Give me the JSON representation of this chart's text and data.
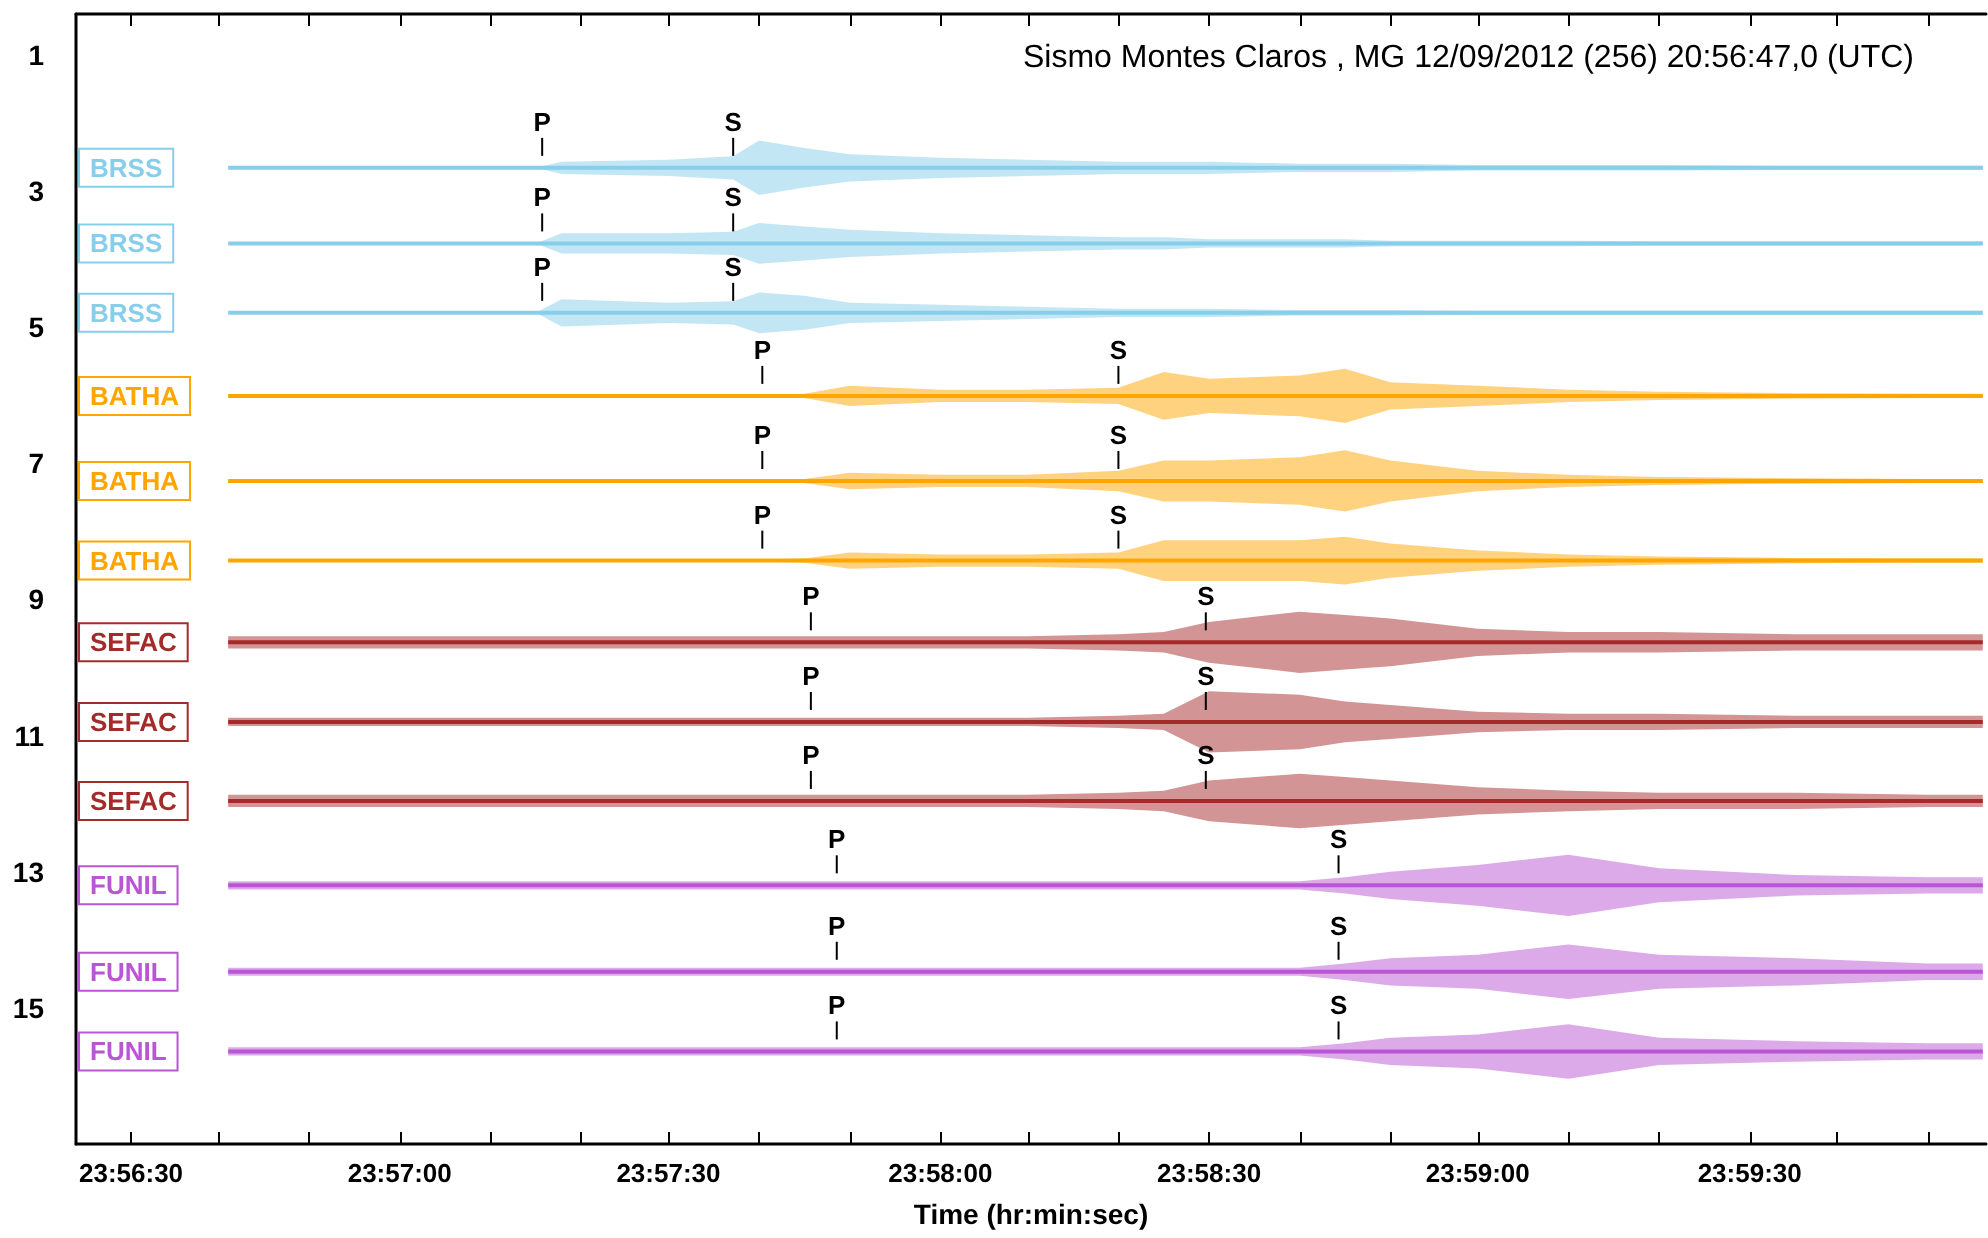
{
  "chart_data": {
    "type": "line",
    "title": "Sismo Montes Claros , MG 12/09/2012 (256) 20:56:47,0 (UTC)",
    "xlabel": "Time (hr:min:sec)",
    "x": [
      23.9447,
      23.95,
      23.9542,
      23.955,
      23.9583,
      23.9603,
      23.9611,
      23.9625,
      23.9639,
      23.9667,
      23.9694,
      23.9722,
      23.9736,
      23.975,
      23.9778,
      23.9792,
      23.9806,
      23.9833,
      23.9861,
      23.9889,
      23.9931,
      23.9972,
      23.9989
    ],
    "xlim": [
      23.94,
      23.999
    ],
    "xticks": [
      {
        "value": 23.9417,
        "label": "23:56:30"
      },
      {
        "value": 23.9444,
        "label": null
      },
      {
        "value": 23.9472,
        "label": null
      },
      {
        "value": 23.95,
        "label": "23:57:00"
      },
      {
        "value": 23.9528,
        "label": null
      },
      {
        "value": 23.9556,
        "label": null
      },
      {
        "value": 23.9583,
        "label": "23:57:30"
      },
      {
        "value": 23.9611,
        "label": null
      },
      {
        "value": 23.9639,
        "label": null
      },
      {
        "value": 23.9667,
        "label": "23:58:00"
      },
      {
        "value": 23.9694,
        "label": null
      },
      {
        "value": 23.9722,
        "label": null
      },
      {
        "value": 23.975,
        "label": "23:58:30"
      },
      {
        "value": 23.9778,
        "label": null
      },
      {
        "value": 23.9806,
        "label": null
      },
      {
        "value": 23.9833,
        "label": "23:59:00"
      },
      {
        "value": 23.9861,
        "label": null
      },
      {
        "value": 23.9889,
        "label": null
      },
      {
        "value": 23.9917,
        "label": "23:59:30"
      },
      {
        "value": 23.9944,
        "label": null
      },
      {
        "value": 23.9972,
        "label": null
      }
    ],
    "ylim": [
      17,
      0.4
    ],
    "yticks": [
      1,
      3,
      5,
      7,
      9,
      11,
      13,
      15
    ],
    "series": [
      {
        "name": "BRSS",
        "color": "#87ceeb",
        "values": [
          2.66,
          2.66,
          2.66,
          2.66,
          2.66,
          2.66,
          2.66,
          2.66,
          2.66,
          2.66,
          2.66,
          2.66,
          2.66,
          2.66,
          2.66,
          2.66,
          2.66,
          2.66,
          2.66,
          2.66,
          2.66,
          2.66,
          2.66
        ],
        "lower": [
          2.66,
          2.66,
          2.66,
          2.57,
          2.54,
          2.49,
          2.26,
          2.37,
          2.46,
          2.51,
          2.54,
          2.57,
          2.57,
          2.57,
          2.6,
          2.6,
          2.6,
          2.62,
          2.62,
          2.62,
          2.63,
          2.63,
          2.63
        ],
        "upper": [
          2.66,
          2.66,
          2.66,
          2.75,
          2.78,
          2.83,
          3.06,
          2.95,
          2.86,
          2.81,
          2.78,
          2.75,
          2.75,
          2.75,
          2.72,
          2.72,
          2.72,
          2.7,
          2.7,
          2.7,
          2.69,
          2.69,
          2.69
        ]
      },
      {
        "name": "BRSS",
        "color": "#87ceeb",
        "values": [
          3.77,
          3.77,
          3.77,
          3.77,
          3.77,
          3.77,
          3.77,
          3.77,
          3.77,
          3.77,
          3.77,
          3.77,
          3.77,
          3.77,
          3.77,
          3.77,
          3.77,
          3.77,
          3.77,
          3.77,
          3.77,
          3.77,
          3.77
        ],
        "lower": [
          3.77,
          3.77,
          3.77,
          3.62,
          3.62,
          3.6,
          3.47,
          3.52,
          3.57,
          3.62,
          3.65,
          3.68,
          3.68,
          3.71,
          3.71,
          3.71,
          3.73,
          3.73,
          3.73,
          3.74,
          3.74,
          3.74,
          3.74
        ],
        "upper": [
          3.77,
          3.77,
          3.77,
          3.92,
          3.92,
          3.94,
          4.07,
          4.02,
          3.97,
          3.92,
          3.89,
          3.86,
          3.86,
          3.83,
          3.83,
          3.83,
          3.81,
          3.81,
          3.81,
          3.8,
          3.8,
          3.8,
          3.8
        ]
      },
      {
        "name": "BRSS",
        "color": "#87ceeb",
        "values": [
          4.79,
          4.79,
          4.79,
          4.79,
          4.79,
          4.79,
          4.79,
          4.79,
          4.79,
          4.79,
          4.79,
          4.79,
          4.79,
          4.79,
          4.79,
          4.79,
          4.79,
          4.79,
          4.79,
          4.79,
          4.79,
          4.79,
          4.79
        ],
        "lower": [
          4.79,
          4.79,
          4.79,
          4.59,
          4.64,
          4.62,
          4.49,
          4.54,
          4.64,
          4.67,
          4.7,
          4.73,
          4.73,
          4.73,
          4.75,
          4.75,
          4.75,
          4.76,
          4.76,
          4.76,
          4.76,
          4.76,
          4.76
        ],
        "upper": [
          4.79,
          4.79,
          4.79,
          4.99,
          4.94,
          4.96,
          5.09,
          5.04,
          4.94,
          4.91,
          4.88,
          4.85,
          4.85,
          4.85,
          4.83,
          4.83,
          4.83,
          4.82,
          4.82,
          4.82,
          4.82,
          4.82,
          4.82
        ]
      },
      {
        "name": "BATHA",
        "color": "#ffa500",
        "values": [
          6.01,
          6.01,
          6.01,
          6.01,
          6.01,
          6.01,
          6.01,
          6.01,
          6.01,
          6.01,
          6.01,
          6.01,
          6.01,
          6.01,
          6.01,
          6.01,
          6.01,
          6.01,
          6.01,
          6.01,
          6.01,
          6.01,
          6.01
        ],
        "lower": [
          6,
          6,
          6,
          6,
          6,
          6,
          6,
          5.98,
          5.86,
          5.92,
          5.92,
          5.89,
          5.66,
          5.76,
          5.71,
          5.61,
          5.81,
          5.86,
          5.92,
          5.95,
          5.97,
          5.98,
          5.98
        ],
        "upper": [
          6.02,
          6.02,
          6.02,
          6.02,
          6.02,
          6.02,
          6.02,
          6.04,
          6.16,
          6.1,
          6.1,
          6.13,
          6.36,
          6.26,
          6.31,
          6.41,
          6.21,
          6.16,
          6.1,
          6.07,
          6.05,
          6.04,
          6.04
        ]
      },
      {
        "name": "BATHA",
        "color": "#ffa500",
        "values": [
          7.26,
          7.26,
          7.26,
          7.26,
          7.26,
          7.26,
          7.26,
          7.26,
          7.26,
          7.26,
          7.26,
          7.26,
          7.26,
          7.26,
          7.26,
          7.26,
          7.26,
          7.26,
          7.26,
          7.26,
          7.26,
          7.26,
          7.26
        ],
        "lower": [
          7.25,
          7.25,
          7.25,
          7.25,
          7.25,
          7.25,
          7.25,
          7.23,
          7.14,
          7.17,
          7.17,
          7.11,
          6.96,
          6.96,
          6.91,
          6.81,
          6.96,
          7.11,
          7.17,
          7.2,
          7.22,
          7.23,
          7.23
        ],
        "upper": [
          7.27,
          7.27,
          7.27,
          7.27,
          7.27,
          7.27,
          7.27,
          7.29,
          7.38,
          7.35,
          7.35,
          7.41,
          7.56,
          7.56,
          7.61,
          7.71,
          7.56,
          7.41,
          7.35,
          7.32,
          7.3,
          7.29,
          7.29
        ]
      },
      {
        "name": "BATHA",
        "color": "#ffa500",
        "values": [
          8.43,
          8.43,
          8.43,
          8.43,
          8.43,
          8.43,
          8.43,
          8.43,
          8.43,
          8.43,
          8.43,
          8.43,
          8.43,
          8.43,
          8.43,
          8.43,
          8.43,
          8.43,
          8.43,
          8.43,
          8.43,
          8.43,
          8.43
        ],
        "lower": [
          8.42,
          8.42,
          8.42,
          8.42,
          8.42,
          8.42,
          8.42,
          8.4,
          8.31,
          8.34,
          8.34,
          8.31,
          8.13,
          8.13,
          8.13,
          8.08,
          8.18,
          8.28,
          8.34,
          8.37,
          8.39,
          8.4,
          8.4
        ],
        "upper": [
          8.44,
          8.44,
          8.44,
          8.44,
          8.44,
          8.44,
          8.44,
          8.46,
          8.55,
          8.52,
          8.52,
          8.55,
          8.73,
          8.73,
          8.73,
          8.78,
          8.68,
          8.58,
          8.52,
          8.49,
          8.47,
          8.46,
          8.46
        ]
      },
      {
        "name": "SEFAC",
        "color": "#a52a2a",
        "values": [
          9.63,
          9.63,
          9.63,
          9.63,
          9.63,
          9.63,
          9.63,
          9.63,
          9.63,
          9.63,
          9.63,
          9.63,
          9.63,
          9.63,
          9.63,
          9.63,
          9.63,
          9.63,
          9.63,
          9.63,
          9.63,
          9.63,
          9.63
        ],
        "lower": [
          9.54,
          9.54,
          9.54,
          9.54,
          9.54,
          9.54,
          9.54,
          9.54,
          9.54,
          9.54,
          9.54,
          9.51,
          9.48,
          9.33,
          9.18,
          9.23,
          9.28,
          9.43,
          9.48,
          9.48,
          9.51,
          9.51,
          9.51
        ],
        "upper": [
          9.72,
          9.72,
          9.72,
          9.72,
          9.72,
          9.72,
          9.72,
          9.72,
          9.72,
          9.72,
          9.72,
          9.75,
          9.78,
          9.93,
          10.08,
          10.03,
          9.98,
          9.83,
          9.78,
          9.78,
          9.75,
          9.75,
          9.75
        ]
      },
      {
        "name": "SEFAC",
        "color": "#a52a2a",
        "values": [
          10.8,
          10.8,
          10.8,
          10.8,
          10.8,
          10.8,
          10.8,
          10.8,
          10.8,
          10.8,
          10.8,
          10.8,
          10.8,
          10.8,
          10.8,
          10.8,
          10.8,
          10.8,
          10.8,
          10.8,
          10.8,
          10.8,
          10.8
        ],
        "lower": [
          10.74,
          10.74,
          10.74,
          10.74,
          10.74,
          10.74,
          10.74,
          10.74,
          10.74,
          10.74,
          10.74,
          10.71,
          10.68,
          10.35,
          10.4,
          10.5,
          10.55,
          10.65,
          10.68,
          10.68,
          10.71,
          10.71,
          10.71
        ],
        "upper": [
          10.86,
          10.86,
          10.86,
          10.86,
          10.86,
          10.86,
          10.86,
          10.86,
          10.86,
          10.86,
          10.86,
          10.89,
          10.92,
          11.25,
          11.2,
          11.1,
          11.05,
          10.95,
          10.92,
          10.92,
          10.89,
          10.89,
          10.89
        ]
      },
      {
        "name": "SEFAC",
        "color": "#a52a2a",
        "values": [
          11.96,
          11.96,
          11.96,
          11.96,
          11.96,
          11.96,
          11.96,
          11.96,
          11.96,
          11.96,
          11.96,
          11.96,
          11.96,
          11.96,
          11.96,
          11.96,
          11.96,
          11.96,
          11.96,
          11.96,
          11.96,
          11.96,
          11.96
        ],
        "lower": [
          11.87,
          11.87,
          11.87,
          11.87,
          11.87,
          11.87,
          11.87,
          11.87,
          11.87,
          11.87,
          11.87,
          11.84,
          11.81,
          11.66,
          11.56,
          11.61,
          11.66,
          11.76,
          11.81,
          11.84,
          11.84,
          11.87,
          11.87
        ],
        "upper": [
          12.05,
          12.05,
          12.05,
          12.05,
          12.05,
          12.05,
          12.05,
          12.05,
          12.05,
          12.05,
          12.05,
          12.08,
          12.11,
          12.26,
          12.36,
          12.31,
          12.26,
          12.16,
          12.11,
          12.08,
          12.08,
          12.05,
          12.05
        ]
      },
      {
        "name": "FUNIL",
        "color": "#ba55d3",
        "values": [
          13.2,
          13.2,
          13.2,
          13.2,
          13.2,
          13.2,
          13.2,
          13.2,
          13.2,
          13.2,
          13.2,
          13.2,
          13.2,
          13.2,
          13.2,
          13.2,
          13.2,
          13.2,
          13.2,
          13.2,
          13.2,
          13.2,
          13.2
        ],
        "lower": [
          13.14,
          13.14,
          13.14,
          13.14,
          13.14,
          13.14,
          13.14,
          13.14,
          13.14,
          13.14,
          13.14,
          13.14,
          13.14,
          13.14,
          13.14,
          13.08,
          13,
          12.9,
          12.75,
          12.95,
          13.05,
          13.08,
          13.08
        ],
        "upper": [
          13.26,
          13.26,
          13.26,
          13.26,
          13.26,
          13.26,
          13.26,
          13.26,
          13.26,
          13.26,
          13.26,
          13.26,
          13.26,
          13.26,
          13.26,
          13.32,
          13.4,
          13.5,
          13.65,
          13.45,
          13.35,
          13.32,
          13.32
        ]
      },
      {
        "name": "FUNIL",
        "color": "#ba55d3",
        "values": [
          14.47,
          14.47,
          14.47,
          14.47,
          14.47,
          14.47,
          14.47,
          14.47,
          14.47,
          14.47,
          14.47,
          14.47,
          14.47,
          14.47,
          14.47,
          14.47,
          14.47,
          14.47,
          14.47,
          14.47,
          14.47,
          14.47,
          14.47
        ],
        "lower": [
          14.41,
          14.41,
          14.41,
          14.41,
          14.41,
          14.41,
          14.41,
          14.41,
          14.41,
          14.41,
          14.41,
          14.41,
          14.41,
          14.41,
          14.41,
          14.35,
          14.27,
          14.22,
          14.07,
          14.22,
          14.27,
          14.35,
          14.35
        ],
        "upper": [
          14.53,
          14.53,
          14.53,
          14.53,
          14.53,
          14.53,
          14.53,
          14.53,
          14.53,
          14.53,
          14.53,
          14.53,
          14.53,
          14.53,
          14.53,
          14.59,
          14.67,
          14.72,
          14.87,
          14.72,
          14.67,
          14.59,
          14.59
        ]
      },
      {
        "name": "FUNIL",
        "color": "#ba55d3",
        "values": [
          15.64,
          15.64,
          15.64,
          15.64,
          15.64,
          15.64,
          15.64,
          15.64,
          15.64,
          15.64,
          15.64,
          15.64,
          15.64,
          15.64,
          15.64,
          15.64,
          15.64,
          15.64,
          15.64,
          15.64,
          15.64,
          15.64,
          15.64
        ],
        "lower": [
          15.58,
          15.58,
          15.58,
          15.58,
          15.58,
          15.58,
          15.58,
          15.58,
          15.58,
          15.58,
          15.58,
          15.58,
          15.58,
          15.58,
          15.58,
          15.52,
          15.44,
          15.39,
          15.24,
          15.44,
          15.49,
          15.52,
          15.52
        ],
        "upper": [
          15.7,
          15.7,
          15.7,
          15.7,
          15.7,
          15.7,
          15.7,
          15.7,
          15.7,
          15.7,
          15.7,
          15.7,
          15.7,
          15.7,
          15.7,
          15.76,
          15.84,
          15.89,
          16.04,
          15.84,
          15.79,
          15.76,
          15.76
        ]
      }
    ],
    "annotations": [
      {
        "text": "P",
        "x": 23.9544,
        "y": 2.66
      },
      {
        "text": "S",
        "x": 23.9603,
        "y": 2.66
      },
      {
        "text": "P",
        "x": 23.9544,
        "y": 3.77
      },
      {
        "text": "S",
        "x": 23.9603,
        "y": 3.77
      },
      {
        "text": "P",
        "x": 23.9544,
        "y": 4.79
      },
      {
        "text": "S",
        "x": 23.9603,
        "y": 4.79
      },
      {
        "text": "P",
        "x": 23.9612,
        "y": 6.01
      },
      {
        "text": "S",
        "x": 23.9722,
        "y": 6.01
      },
      {
        "text": "P",
        "x": 23.9612,
        "y": 7.26
      },
      {
        "text": "S",
        "x": 23.9722,
        "y": 7.26
      },
      {
        "text": "P",
        "x": 23.9612,
        "y": 8.43
      },
      {
        "text": "S",
        "x": 23.9722,
        "y": 8.43
      },
      {
        "text": "P",
        "x": 23.9627,
        "y": 9.63
      },
      {
        "text": "S",
        "x": 23.9749,
        "y": 9.63
      },
      {
        "text": "P",
        "x": 23.9627,
        "y": 10.8
      },
      {
        "text": "S",
        "x": 23.9749,
        "y": 10.8
      },
      {
        "text": "P",
        "x": 23.9627,
        "y": 11.96
      },
      {
        "text": "S",
        "x": 23.9749,
        "y": 11.96
      },
      {
        "text": "P",
        "x": 23.9635,
        "y": 13.2
      },
      {
        "text": "S",
        "x": 23.979,
        "y": 13.2
      },
      {
        "text": "P",
        "x": 23.9635,
        "y": 14.47
      },
      {
        "text": "S",
        "x": 23.979,
        "y": 14.47
      },
      {
        "text": "P",
        "x": 23.9635,
        "y": 15.64
      },
      {
        "text": "S",
        "x": 23.979,
        "y": 15.64
      }
    ]
  }
}
